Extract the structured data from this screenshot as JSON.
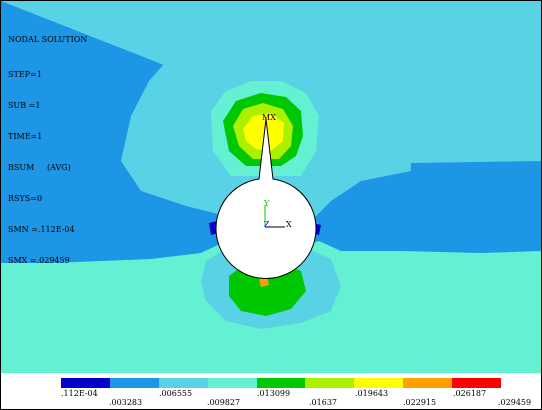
{
  "info": {
    "title": "NODAL SOLUTION",
    "lines": [
      "STEP=1",
      "SUB =1",
      "TIME=1",
      "BSUM     (AVG)",
      "RSYS=0",
      "SMN =.112E-04",
      "SMX =.029459"
    ]
  },
  "markers": {
    "max": "MX"
  },
  "triad": {
    "y": "Y",
    "z": "Z",
    "x": "X"
  },
  "colors": {
    "band0": "#0000c8",
    "band1": "#1e96e6",
    "band2": "#5ad2e6",
    "band3": "#64f0d2",
    "band4": "#00c800",
    "band5": "#aaf000",
    "band6": "#ffff00",
    "band7": "#ffa000",
    "band8": "#ff0000"
  },
  "legend": {
    "swatches": [
      "#0000c8",
      "#1e96e6",
      "#5ad2e6",
      "#64f0d2",
      "#00c800",
      "#aaf000",
      "#ffff00",
      "#ffa000",
      "#ff0000"
    ],
    "top_labels": [
      ".112E-04",
      ".006555",
      ".013099",
      ".019643",
      ".026187"
    ],
    "bottom_labels": [
      ".003283",
      ".009827",
      ".01637",
      ".022915",
      ".029459"
    ]
  }
}
